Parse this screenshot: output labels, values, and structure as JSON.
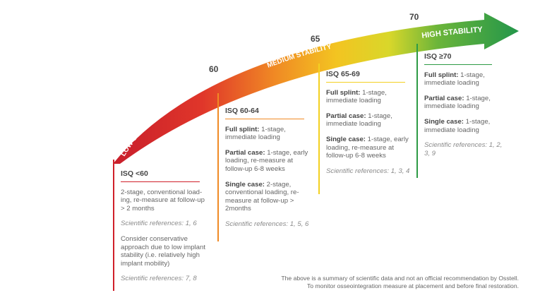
{
  "scale_marks": {
    "m60": "60",
    "m65": "65",
    "m70": "70"
  },
  "arc_labels": {
    "low": "LOW STABILITY",
    "medium": "MEDIUM STABILITY",
    "high": "HIGH STABILITY"
  },
  "colors": {
    "red": "#d0202a",
    "orange": "#f08a24",
    "yellow": "#f3d021",
    "green": "#2e9b45"
  },
  "columns": {
    "low": {
      "heading": "ISQ <60",
      "p1": "2-stage, conventional load-ing, re-measure at follow-up > 2 months",
      "ref1": "Scientific references: 1, 6",
      "p2": "Consider conservative approach due to low implant stability (i.e. relatively high implant mobility)",
      "ref2": "Scientific references: 7, 8"
    },
    "mid_low": {
      "heading": "ISQ 60-64",
      "full_label": "Full splint:",
      "full_text": " 1-stage, immediate loading",
      "partial_label": "Partial case:",
      "partial_text": " 1-stage, early loading, re-measure at follow-up 6-8 weeks",
      "single_label": "Single case:",
      "single_text": " 2-stage, conventional loading, re-measure at follow-up > 2months",
      "ref": "Scientific references: 1, 5, 6"
    },
    "mid_high": {
      "heading": "ISQ 65-69",
      "full_label": "Full splint:",
      "full_text": " 1-stage, immediate loading",
      "partial_label": "Partial case:",
      "partial_text": " 1-stage, immediate loading",
      "single_label": "Single case:",
      "single_text": " 1-stage, early loading, re-measure at follow-up 6-8 weeks",
      "ref": "Scientific references: 1, 3, 4"
    },
    "high": {
      "heading": "ISQ ≥70",
      "full_label": "Full splint:",
      "full_text": " 1-stage, immediate loading",
      "partial_label": "Partial case:",
      "partial_text": " 1-stage, immediate loading",
      "single_label": "Single case:",
      "single_text": " 1-stage, immediate loading",
      "ref": "Scientific references: 1, 2, 3, 9"
    }
  },
  "footer": {
    "line1": "The above is a summary of scientific data and not an official recommendation by Osstell.",
    "line2": "To monitor osseointegration measure at placement and before final restoration."
  }
}
